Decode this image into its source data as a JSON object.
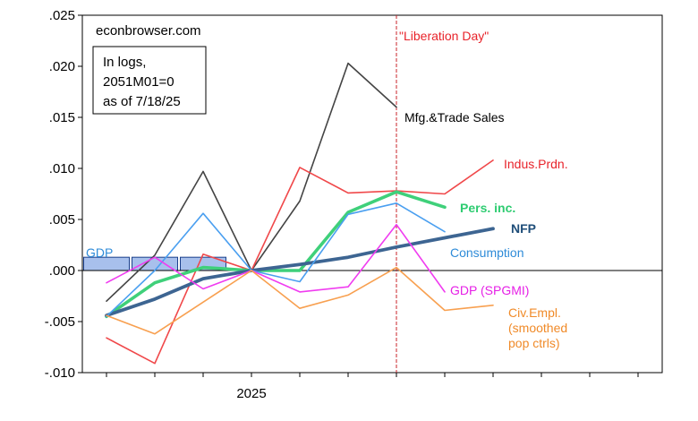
{
  "chart_data": {
    "type": "line",
    "source_label": "econbrowser.com",
    "note_lines": [
      "In logs,",
      "2051M01=0",
      "as of 7/18/25"
    ],
    "event_label": "\"Liberation Day\"",
    "event_x": 6,
    "x_tick_labels": [
      {
        "x": 3,
        "label": "2025"
      }
    ],
    "xlim": [
      -0.5,
      11.5
    ],
    "ylim": [
      -0.01,
      0.025
    ],
    "y_ticks": [
      0.025,
      0.02,
      0.015,
      0.01,
      0.005,
      0.0,
      -0.005,
      -0.01
    ],
    "y_tick_labels": [
      ".025",
      ".020",
      ".015",
      ".010",
      ".005",
      ".000",
      "-.005",
      "-.010"
    ],
    "bars": {
      "name": "GDP",
      "color": "#a8c0ec",
      "edge": "#1a3f8a",
      "x": [
        0,
        1,
        2
      ],
      "values": [
        0.0013,
        0.0013,
        0.0013
      ]
    },
    "series": [
      {
        "name": "Mfg.&Trade Sales",
        "color": "#444444",
        "width": 1.6,
        "x": [
          0,
          1,
          2,
          3,
          4,
          5,
          6
        ],
        "values": [
          -0.003,
          0.0015,
          0.0097,
          0.0,
          0.0068,
          0.0203,
          0.016
        ]
      },
      {
        "name": "Indus.Prdn.",
        "color": "#f0484a",
        "width": 1.6,
        "x": [
          0,
          1,
          2,
          3,
          4,
          5,
          6,
          7,
          8
        ],
        "values": [
          -0.0066,
          -0.0091,
          0.0016,
          0.0,
          0.0101,
          0.0076,
          0.0078,
          0.0075,
          0.0108
        ]
      },
      {
        "name": "Pers. inc.",
        "color": "#3fd07a",
        "width": 3.6,
        "x": [
          0,
          1,
          2,
          3,
          4,
          5,
          6,
          7
        ],
        "values": [
          -0.0045,
          -0.0012,
          0.0003,
          0.0,
          0.0,
          0.0057,
          0.0077,
          0.0062
        ]
      },
      {
        "name": "NFP",
        "color": "#3d6592",
        "width": 3.8,
        "x": [
          0,
          1,
          2,
          3,
          4,
          5,
          6,
          7,
          8
        ],
        "values": [
          -0.0044,
          -0.0028,
          -0.0008,
          0.0,
          0.0006,
          0.0013,
          0.0023,
          0.0032,
          0.0041
        ]
      },
      {
        "name": "Consumption",
        "color": "#4a9ff0",
        "width": 1.6,
        "x": [
          0,
          1,
          2,
          3,
          4,
          5,
          6,
          7
        ],
        "values": [
          -0.0045,
          0.0,
          0.0056,
          0.0,
          -0.0011,
          0.0055,
          0.0066,
          0.0038
        ]
      },
      {
        "name": "GDP (SPGMI)",
        "color": "#f03cf0",
        "width": 1.6,
        "x": [
          0,
          1,
          2,
          3,
          4,
          5,
          6,
          7
        ],
        "values": [
          -0.0012,
          0.0013,
          -0.0018,
          0.0,
          -0.0021,
          -0.0016,
          0.0045,
          -0.0021
        ]
      },
      {
        "name": "Civ.Empl. (smoothed pop ctrls)",
        "color": "#f8a050",
        "width": 1.6,
        "x": [
          0,
          1,
          2,
          3,
          4,
          5,
          6,
          7,
          8
        ],
        "values": [
          -0.0044,
          -0.0062,
          -0.0031,
          0.0,
          -0.0037,
          -0.0024,
          0.0003,
          -0.0039,
          -0.0034
        ]
      }
    ],
    "series_labels": [
      {
        "lines": [
          "Mfg.&Trade Sales"
        ],
        "color": "#000000",
        "bold": false,
        "size": 14
      },
      {
        "lines": [
          "Indus.Prdn."
        ],
        "color": "#e8232a",
        "bold": false,
        "size": 15
      },
      {
        "lines": [
          "Pers. inc."
        ],
        "color": "#2ecc71",
        "bold": true,
        "size": 16
      },
      {
        "lines": [
          "NFP"
        ],
        "color": "#1f4e79",
        "bold": true,
        "size": 15
      },
      {
        "lines": [
          "Consumption"
        ],
        "color": "#2e8bd8",
        "bold": false,
        "size": 15
      },
      {
        "lines": [
          "GDP (SPGMI)"
        ],
        "color": "#e620e6",
        "bold": false,
        "size": 16
      },
      {
        "lines": [
          "Civ.Empl.",
          "(smoothed",
          "pop ctrls)"
        ],
        "color": "#f08a28",
        "bold": false,
        "size": 14
      },
      {
        "lines": [
          "GDP"
        ],
        "color": "#2e8bd8",
        "bold": false,
        "size": 15
      }
    ],
    "grid": false,
    "title": "",
    "xlabel": "",
    "ylabel": ""
  }
}
